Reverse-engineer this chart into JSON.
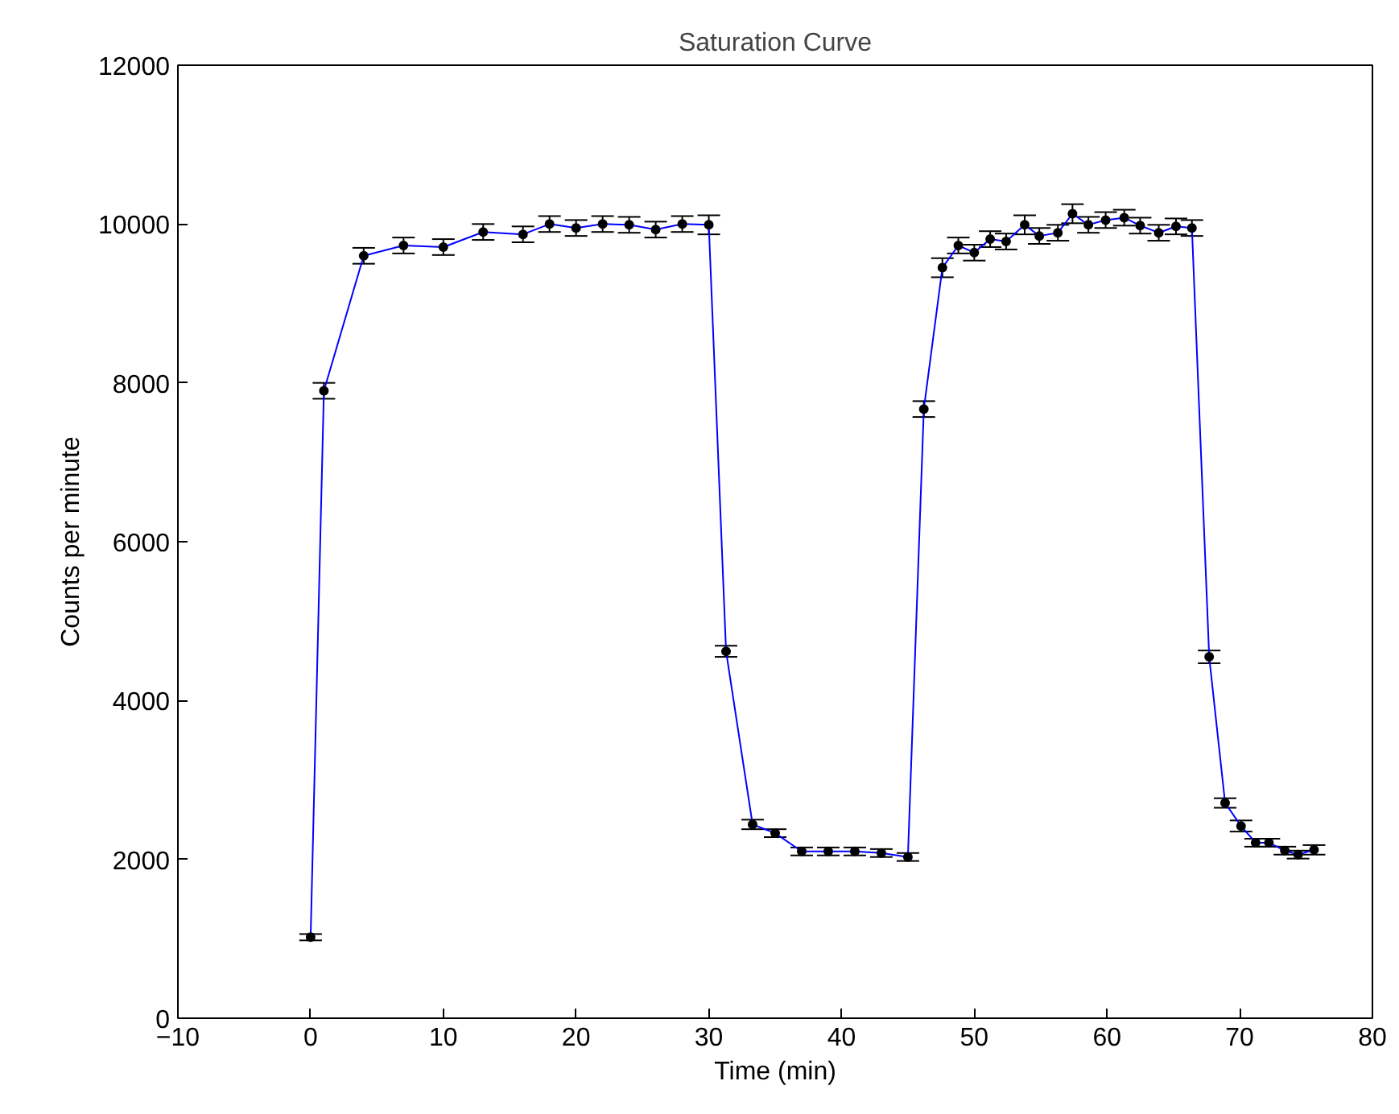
{
  "chart_data": {
    "type": "line",
    "title": "Saturation Curve",
    "xlabel": "Time (min)",
    "ylabel": "Counts per minute",
    "x": [
      0,
      1,
      4,
      7,
      10,
      13,
      16,
      18,
      20,
      22,
      24,
      26,
      28,
      30,
      31.3,
      33.3,
      35,
      37,
      39,
      41,
      43,
      45,
      46.2,
      47.6,
      48.8,
      50,
      51.2,
      52.4,
      53.8,
      54.9,
      56.3,
      57.4,
      58.6,
      59.9,
      61.3,
      62.5,
      63.9,
      65.2,
      66.4,
      67.7,
      68.9,
      70.1,
      71.2,
      72.2,
      73.4,
      74.4,
      75.6
    ],
    "series": [
      {
        "color": "#0000ff",
        "values": [
          1020,
          7900,
          9600,
          9730,
          9710,
          9900,
          9870,
          10000,
          9950,
          10000,
          9990,
          9930,
          10000,
          9990,
          4620,
          2440,
          2330,
          2100,
          2100,
          2100,
          2080,
          2030,
          7670,
          9450,
          9730,
          9640,
          9810,
          9780,
          9990,
          9850,
          9890,
          10130,
          9990,
          10050,
          10080,
          9980,
          9890,
          9970,
          9950,
          4550,
          2710,
          2420,
          2210,
          2210,
          2110,
          2060,
          2120
        ],
        "errors": [
          40,
          100,
          100,
          100,
          100,
          100,
          100,
          100,
          100,
          100,
          100,
          100,
          100,
          120,
          70,
          60,
          50,
          50,
          50,
          50,
          50,
          50,
          100,
          120,
          100,
          100,
          100,
          100,
          120,
          100,
          100,
          120,
          100,
          100,
          100,
          100,
          100,
          100,
          100,
          80,
          60,
          70,
          50,
          50,
          50,
          50,
          60
        ]
      }
    ],
    "marker": "circle",
    "line_style": "solid",
    "xlim": [
      -10,
      80
    ],
    "ylim": [
      0,
      12000
    ],
    "xticks": [
      {
        "value": -10,
        "label": "−10"
      },
      0,
      10,
      20,
      30,
      40,
      50,
      60,
      70,
      80
    ],
    "yticks": [
      0,
      2000,
      4000,
      6000,
      8000,
      10000,
      12000
    ],
    "grid": false
  }
}
